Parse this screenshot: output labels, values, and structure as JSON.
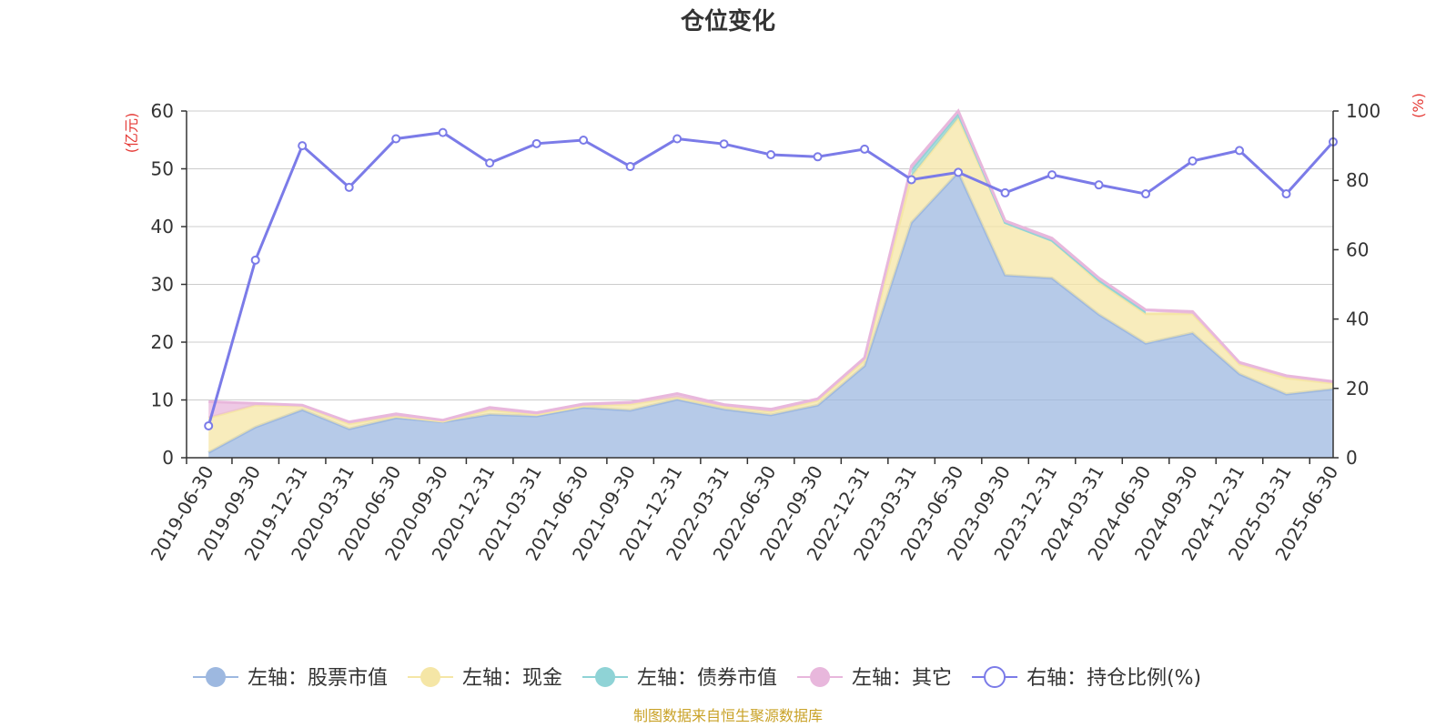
{
  "chart_data": {
    "type": "area",
    "title": "仓位变化",
    "left_unit": "(亿元)",
    "right_unit": "(%)",
    "left_ylim": [
      0,
      60
    ],
    "left_ticks": [
      "0",
      "10",
      "20",
      "30",
      "40",
      "50",
      "60"
    ],
    "right_ylim": [
      0,
      100
    ],
    "right_ticks": [
      "0",
      "20",
      "40",
      "60",
      "80",
      "100"
    ],
    "grid": true,
    "legend_position": "bottom",
    "categories": [
      "2019-06-30",
      "2019-09-30",
      "2019-12-31",
      "2020-03-31",
      "2020-06-30",
      "2020-09-30",
      "2020-12-31",
      "2021-03-31",
      "2021-06-30",
      "2021-09-30",
      "2021-12-31",
      "2022-03-31",
      "2022-06-30",
      "2022-09-30",
      "2022-12-31",
      "2023-03-31",
      "2023-06-30",
      "2023-09-30",
      "2023-12-31",
      "2024-03-31",
      "2024-06-30",
      "2024-09-30",
      "2024-12-31",
      "2025-03-31",
      "2025-06-30"
    ],
    "series": [
      {
        "name": "左轴：股票市值",
        "axis": "left",
        "kind": "stacked-area",
        "color": "#9db8e0",
        "values": [
          0.9,
          5.3,
          8.3,
          5.0,
          6.9,
          6.2,
          7.5,
          7.2,
          8.7,
          8.2,
          10.1,
          8.4,
          7.4,
          9.1,
          15.9,
          40.7,
          49.4,
          31.6,
          31.1,
          24.8,
          19.8,
          21.6,
          14.5,
          11.0,
          11.9
        ]
      },
      {
        "name": "左轴：现金",
        "axis": "left",
        "kind": "stacked-area",
        "color": "#f5e6a6",
        "values": [
          6.0,
          3.8,
          0.7,
          0.9,
          0.3,
          0.1,
          0.8,
          0.3,
          0.3,
          1.1,
          0.4,
          0.5,
          0.6,
          0.8,
          1.0,
          8.0,
          9.4,
          9.1,
          6.5,
          5.6,
          5.1,
          3.3,
          1.7,
          2.8,
          1.0
        ]
      },
      {
        "name": "左轴：债券市值",
        "axis": "left",
        "kind": "stacked-area",
        "color": "#8fd3d6",
        "values": [
          0,
          0,
          0,
          0,
          0,
          0,
          0,
          0,
          0,
          0,
          0,
          0,
          0,
          0,
          0,
          1.2,
          0.8,
          0,
          0,
          0.4,
          0.4,
          0,
          0,
          0.1,
          0
        ],
        "segment_start": 15,
        "segment_end": 20
      },
      {
        "name": "左轴：其它",
        "axis": "left",
        "kind": "stacked-area",
        "color": "#e8b7dc",
        "values": [
          2.8,
          0.3,
          0.1,
          0.3,
          0.4,
          0.2,
          0.4,
          0.3,
          0.3,
          0.3,
          0.6,
          0.3,
          0.4,
          0.3,
          0.4,
          0.6,
          0.4,
          0.3,
          0.4,
          0.3,
          0.3,
          0.4,
          0.3,
          0.3,
          0.3
        ]
      },
      {
        "name": "右轴：持仓比例(%)",
        "axis": "right",
        "kind": "line",
        "color": "#7b7be8",
        "values": [
          9.2,
          57.0,
          90.0,
          78.0,
          92.0,
          93.8,
          85.0,
          90.6,
          91.6,
          84.0,
          92.0,
          90.5,
          87.4,
          86.8,
          89.0,
          80.2,
          82.3,
          76.4,
          81.6,
          78.7,
          76.1,
          85.6,
          88.6,
          76.1,
          91.1
        ]
      }
    ]
  },
  "source_note": "制图数据来自恒生聚源数据库",
  "colors": {
    "unit_label": "#e53935",
    "source_note": "#c9a227",
    "axis": "#333333",
    "grid": "#cccccc"
  }
}
